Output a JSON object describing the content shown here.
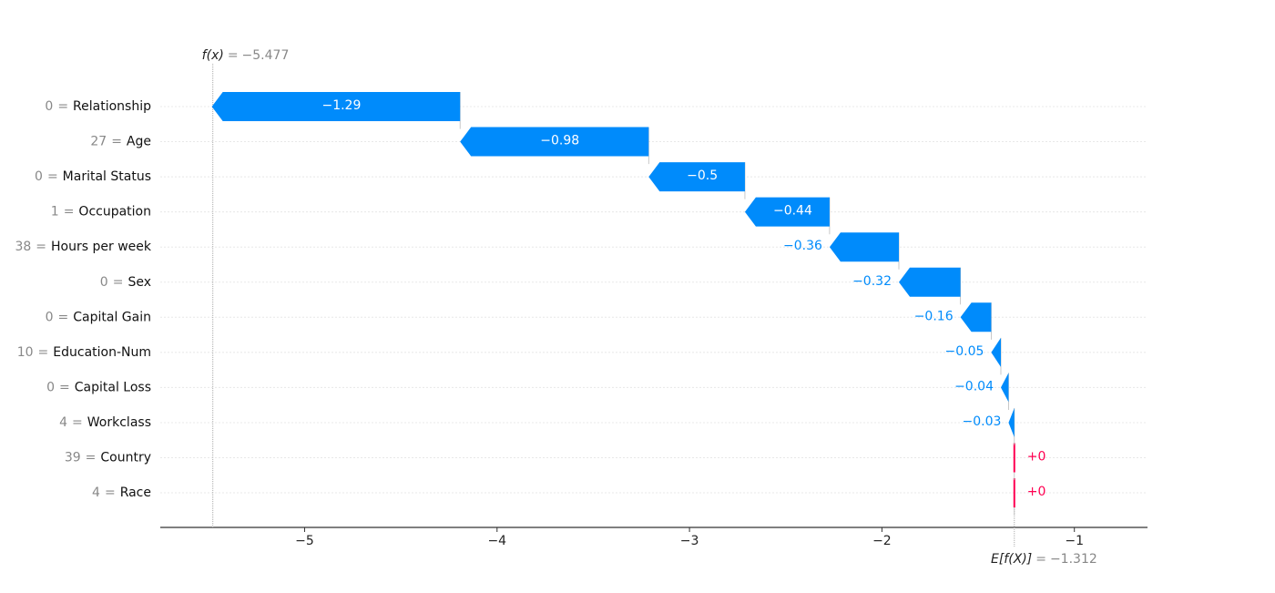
{
  "chart_data": {
    "type": "waterfall",
    "feature_values": [
      0,
      27,
      0,
      1,
      38,
      0,
      0,
      10,
      0,
      4,
      39,
      4
    ],
    "equals": "=",
    "categories": [
      "Relationship",
      "Age",
      "Marital Status",
      "Occupation",
      "Hours per week",
      "Sex",
      "Capital Gain",
      "Education-Num",
      "Capital Loss",
      "Workclass",
      "Country",
      "Race"
    ],
    "values": [
      -1.29,
      -0.98,
      -0.5,
      -0.44,
      -0.36,
      -0.32,
      -0.16,
      -0.05,
      -0.04,
      -0.03,
      0,
      0
    ],
    "value_labels": [
      "−1.29",
      "−0.98",
      "−0.5",
      "−0.44",
      "−0.36",
      "−0.32",
      "−0.16",
      "−0.05",
      "−0.04",
      "−0.03",
      "+0",
      "+0"
    ],
    "fx_label": "f(x)",
    "fx": -5.477,
    "fx_value_label": "−5.477",
    "base_label": "E[f(X)]",
    "base": -1.312,
    "base_value_label": "−1.312",
    "negative_color": "#008bfb",
    "positive_color": "#ff0051",
    "xlim": [
      -5.75,
      -0.62
    ],
    "xticks": [
      {
        "value": -5,
        "label": "−5"
      },
      {
        "value": -4,
        "label": "−4"
      },
      {
        "value": -3,
        "label": "−3"
      },
      {
        "value": -2,
        "label": "−2"
      },
      {
        "value": -1,
        "label": "−1"
      }
    ]
  }
}
